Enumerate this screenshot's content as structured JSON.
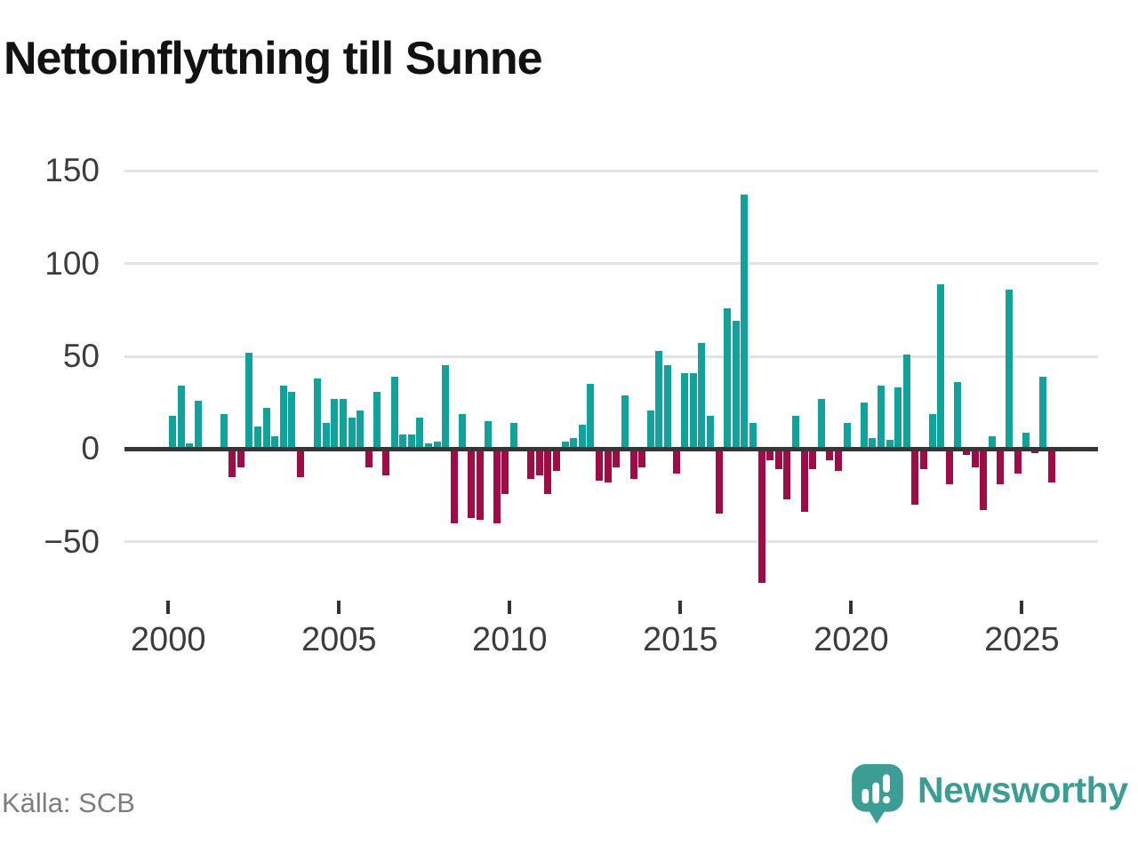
{
  "title": "Nettoinflyttning till Sunne",
  "source": "Källa: SCB",
  "brand": {
    "wordmark": "Newsworthy",
    "logo_icon": "bar-chart-speech-bubble-icon",
    "color": "#3c9d95"
  },
  "chart_data": {
    "type": "bar",
    "title": "Nettoinflyttning till Sunne",
    "x_unit": "quarter",
    "categories": [
      "2000 Q1",
      "2000 Q2",
      "2000 Q3",
      "2000 Q4",
      "2001 Q1",
      "2001 Q2",
      "2001 Q3",
      "2001 Q4",
      "2002 Q1",
      "2002 Q2",
      "2002 Q3",
      "2002 Q4",
      "2003 Q1",
      "2003 Q2",
      "2003 Q3",
      "2003 Q4",
      "2004 Q1",
      "2004 Q2",
      "2004 Q3",
      "2004 Q4",
      "2005 Q1",
      "2005 Q2",
      "2005 Q3",
      "2005 Q4",
      "2006 Q1",
      "2006 Q2",
      "2006 Q3",
      "2006 Q4",
      "2007 Q1",
      "2007 Q2",
      "2007 Q3",
      "2007 Q4",
      "2008 Q1",
      "2008 Q2",
      "2008 Q3",
      "2008 Q4",
      "2009 Q1",
      "2009 Q2",
      "2009 Q3",
      "2009 Q4",
      "2010 Q1",
      "2010 Q2",
      "2010 Q3",
      "2010 Q4",
      "2011 Q1",
      "2011 Q2",
      "2011 Q3",
      "2011 Q4",
      "2012 Q1",
      "2012 Q2",
      "2012 Q3",
      "2012 Q4",
      "2013 Q1",
      "2013 Q2",
      "2013 Q3",
      "2013 Q4",
      "2014 Q1",
      "2014 Q2",
      "2014 Q3",
      "2014 Q4",
      "2015 Q1",
      "2015 Q2",
      "2015 Q3",
      "2015 Q4",
      "2016 Q1",
      "2016 Q2",
      "2016 Q3",
      "2016 Q4",
      "2017 Q1",
      "2017 Q2",
      "2017 Q3",
      "2017 Q4",
      "2018 Q1",
      "2018 Q2",
      "2018 Q3",
      "2018 Q4",
      "2019 Q1",
      "2019 Q2",
      "2019 Q3",
      "2019 Q4",
      "2020 Q1",
      "2020 Q2",
      "2020 Q3",
      "2020 Q4",
      "2021 Q1",
      "2021 Q2",
      "2021 Q3",
      "2021 Q4",
      "2022 Q1",
      "2022 Q2",
      "2022 Q3",
      "2022 Q4",
      "2023 Q1",
      "2023 Q2",
      "2023 Q3",
      "2023 Q4",
      "2024 Q1",
      "2024 Q2",
      "2024 Q3",
      "2024 Q4",
      "2025 Q1",
      "2025 Q2",
      "2025 Q3",
      "2025 Q4"
    ],
    "values": [
      18,
      34,
      3,
      26,
      0,
      0,
      19,
      -15,
      -10,
      52,
      12,
      22,
      7,
      34,
      31,
      -15,
      0,
      38,
      14,
      27,
      27,
      17,
      21,
      -10,
      31,
      -14,
      39,
      8,
      8,
      17,
      3,
      4,
      45,
      -40,
      19,
      -37,
      -38,
      15,
      -40,
      -24,
      14,
      0,
      -16,
      -14,
      -24,
      -12,
      4,
      6,
      13,
      35,
      -17,
      -18,
      -10,
      29,
      -16,
      -10,
      21,
      53,
      45,
      -13,
      41,
      41,
      57,
      18,
      -35,
      76,
      69,
      137,
      14,
      -72,
      -6,
      -11,
      -27,
      18,
      -34,
      -11,
      27,
      -6,
      -12,
      14,
      0,
      25,
      6,
      34,
      5,
      33,
      51,
      -30,
      -11,
      19,
      89,
      -19,
      36,
      -3,
      -10,
      -33,
      7,
      -19,
      86,
      -13,
      9,
      -2,
      39,
      -18
    ],
    "yticks": [
      150,
      100,
      50,
      0,
      -50
    ],
    "ytick_labels": [
      "150",
      "100",
      "50",
      "0",
      "−50"
    ],
    "xtick_years": [
      2000,
      2005,
      2010,
      2015,
      2020,
      2025
    ],
    "ylim": [
      -75,
      150
    ],
    "grid": "horizontal",
    "legend": "none",
    "colors": {
      "positive": "#10a39b",
      "negative": "#a00c45",
      "zero_line": "#363636",
      "gridline": "#e3e3e3"
    }
  }
}
